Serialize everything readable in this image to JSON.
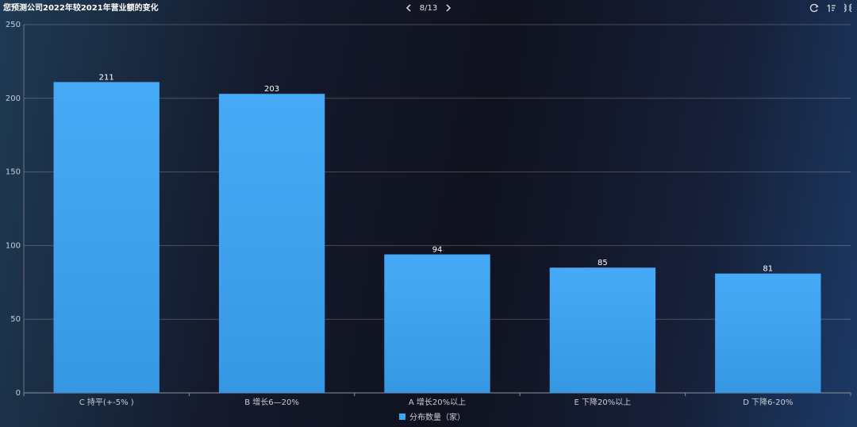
{
  "chart_data": {
    "type": "bar",
    "title": "您预测公司2022年较2021年营业额的变化",
    "pager": "8/13",
    "categories": [
      "C 持平(+-5% )",
      "B 增长6—20%",
      "A 增长20%以上",
      "E 下降20%以上",
      "D 下降6-20%"
    ],
    "series": [
      {
        "name": "分布数量（家）",
        "color": "#3aa4f5",
        "values": [
          211,
          203,
          94,
          85,
          81
        ]
      }
    ],
    "ylim": [
      0,
      250
    ],
    "yticks": [
      0,
      50,
      100,
      150,
      200,
      250
    ],
    "grid": true,
    "legend": "bottom"
  }
}
